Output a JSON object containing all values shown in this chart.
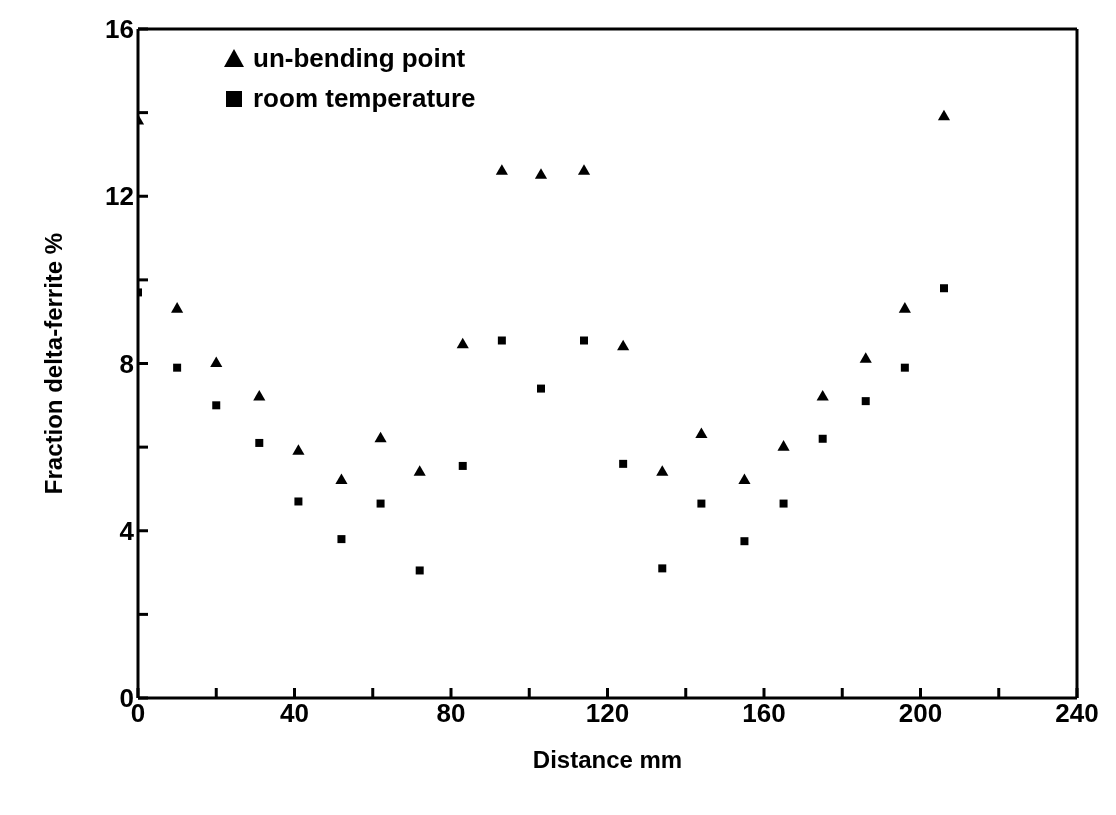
{
  "chart_data": {
    "type": "scatter",
    "xlabel": "Distance mm",
    "ylabel": "Fraction delta-ferrite %",
    "x": [
      0,
      10,
      20,
      31,
      41,
      52,
      62,
      72,
      83,
      93,
      103,
      114,
      124,
      134,
      144,
      155,
      165,
      175,
      186,
      196,
      206
    ],
    "series": [
      {
        "name": "un-bending point",
        "color": "#000000",
        "marker": "triangle",
        "values": [
          13.8,
          9.3,
          8.0,
          7.2,
          5.9,
          5.2,
          6.2,
          5.4,
          8.45,
          12.6,
          12.5,
          12.6,
          8.4,
          5.4,
          6.3,
          5.2,
          6.0,
          7.2,
          8.1,
          9.3,
          13.9
        ]
      },
      {
        "name": "room temperature",
        "color": "#000000",
        "marker": "square",
        "values": [
          9.7,
          7.9,
          7.0,
          6.1,
          4.7,
          3.8,
          4.65,
          3.05,
          5.55,
          8.55,
          7.4,
          8.55,
          5.6,
          3.1,
          4.65,
          3.75,
          4.65,
          6.2,
          7.1,
          7.9,
          9.8
        ]
      }
    ],
    "xlim": [
      0,
      240
    ],
    "ylim": [
      0,
      16
    ],
    "xticks": [
      0,
      {
        "value": 20,
        "label": null
      },
      40,
      {
        "value": 60,
        "label": null
      },
      80,
      {
        "value": 100,
        "label": null
      },
      120,
      {
        "value": 140,
        "label": null
      },
      160,
      {
        "value": 180,
        "label": null
      },
      200,
      {
        "value": 220,
        "label": null
      },
      240
    ],
    "yticks": [
      0,
      {
        "value": 2,
        "label": null
      },
      4,
      {
        "value": 6,
        "label": null
      },
      8,
      {
        "value": 10,
        "label": null
      },
      12,
      {
        "value": 14,
        "label": null
      },
      16
    ],
    "legend": "top left"
  }
}
